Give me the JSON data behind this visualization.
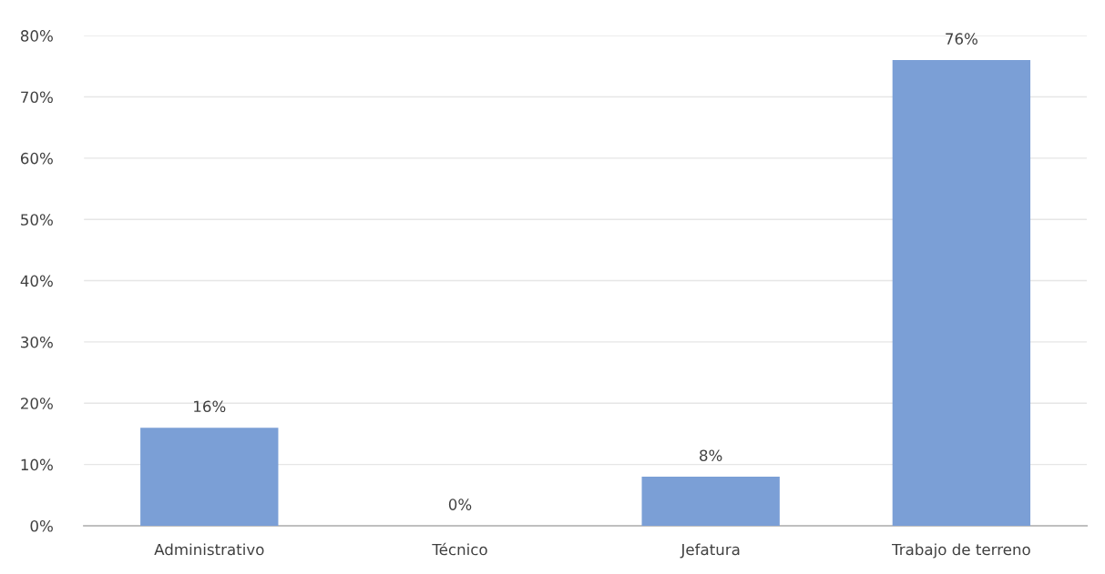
{
  "chart_data": {
    "type": "bar",
    "categories": [
      "Administrativo",
      "Técnico",
      "Jefatura",
      "Trabajo de terreno"
    ],
    "values": [
      16,
      0,
      8,
      76
    ],
    "value_labels": [
      "16%",
      "0%",
      "8%",
      "76%"
    ],
    "color": "#7b9fd6",
    "ylim": [
      0,
      80
    ],
    "yticks": [
      {
        "value": 0,
        "label": "0%"
      },
      {
        "value": 10,
        "label": "10%"
      },
      {
        "value": 20,
        "label": "20%"
      },
      {
        "value": 30,
        "label": "30%"
      },
      {
        "value": 40,
        "label": "40%"
      },
      {
        "value": 50,
        "label": "50%"
      },
      {
        "value": 60,
        "label": "60%"
      },
      {
        "value": 70,
        "label": "70%"
      },
      {
        "value": 80,
        "label": "80%"
      }
    ],
    "grid": "y",
    "legend": false
  }
}
